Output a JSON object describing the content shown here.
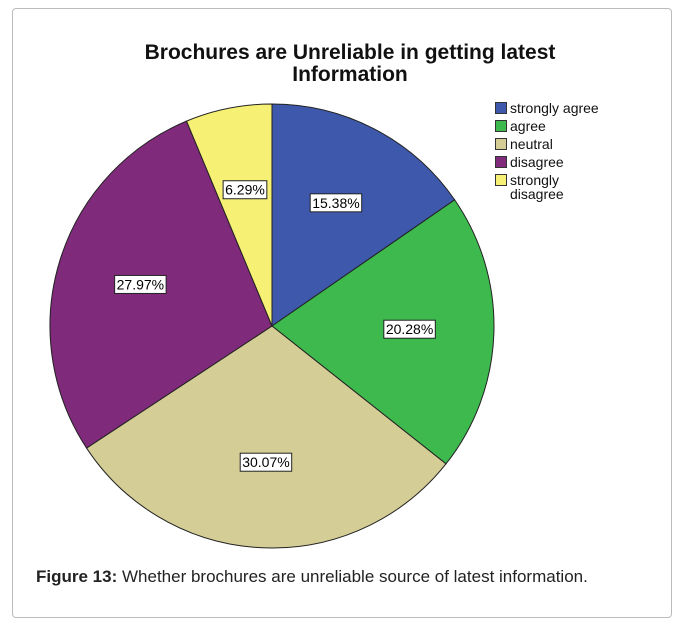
{
  "chart_data": {
    "type": "pie",
    "title": "Brochures are Unreliable in getting latest Information",
    "categories": [
      "strongly agree",
      "agree",
      "neutral",
      "disagree",
      "strongly disagree"
    ],
    "values": [
      15.38,
      20.28,
      30.07,
      27.97,
      6.29
    ],
    "value_labels": [
      "15.38%",
      "20.28%",
      "30.07%",
      "27.97%",
      "6.29%"
    ],
    "colors": [
      "#3e58ac",
      "#3db94d",
      "#d4cd95",
      "#7f2a7b",
      "#f6f075"
    ],
    "legend": "upper right"
  },
  "caption": {
    "label": "Figure 13:",
    "text": "Whether brochures are unreliable source of latest information."
  }
}
